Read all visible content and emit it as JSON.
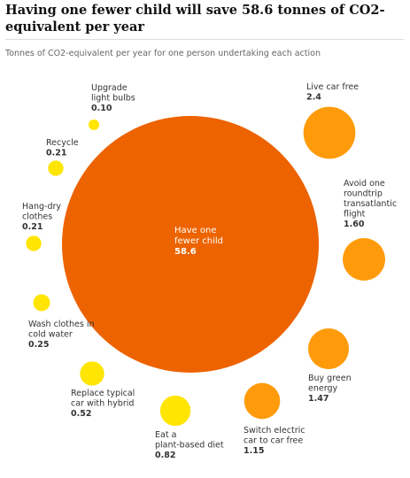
{
  "chart_data": {
    "type": "bubble",
    "title": "Having one fewer child will save 58.6 tonnes of CO2-equivalent per year",
    "subtitle": "Tonnes of CO2-equivalent per year for one person undertaking each action",
    "unit": "tonnes CO2-equivalent per year",
    "items": [
      {
        "label": "Have one fewer child",
        "value": 58.6,
        "value_text": "58.6",
        "color": "#ed6300"
      },
      {
        "label": "Live car free",
        "value": 2.4,
        "value_text": "2.4",
        "color": "#ff9b0b"
      },
      {
        "label": "Avoid one roundtrip transatlantic flight",
        "value": 1.6,
        "value_text": "1.60",
        "color": "#ff9b0b"
      },
      {
        "label": "Buy green energy",
        "value": 1.47,
        "value_text": "1.47",
        "color": "#ff9b0b"
      },
      {
        "label": "Switch electric car to car free",
        "value": 1.15,
        "value_text": "1.15",
        "color": "#ff9b0b"
      },
      {
        "label": "Eat a plant-based diet",
        "value": 0.82,
        "value_text": "0.82",
        "color": "#ffe500"
      },
      {
        "label": "Replace typical car with hybrid",
        "value": 0.52,
        "value_text": "0.52",
        "color": "#ffe500"
      },
      {
        "label": "Wash clothes in cold water",
        "value": 0.25,
        "value_text": "0.25",
        "color": "#ffe500"
      },
      {
        "label": "Hang-dry clothes",
        "value": 0.21,
        "value_text": "0.21",
        "color": "#ffe500"
      },
      {
        "label": "Recycle",
        "value": 0.21,
        "value_text": "0.21",
        "color": "#ffe500"
      },
      {
        "label": "Upgrade light bulbs",
        "value": 0.1,
        "value_text": "0.10",
        "color": "#ffe500"
      }
    ]
  }
}
